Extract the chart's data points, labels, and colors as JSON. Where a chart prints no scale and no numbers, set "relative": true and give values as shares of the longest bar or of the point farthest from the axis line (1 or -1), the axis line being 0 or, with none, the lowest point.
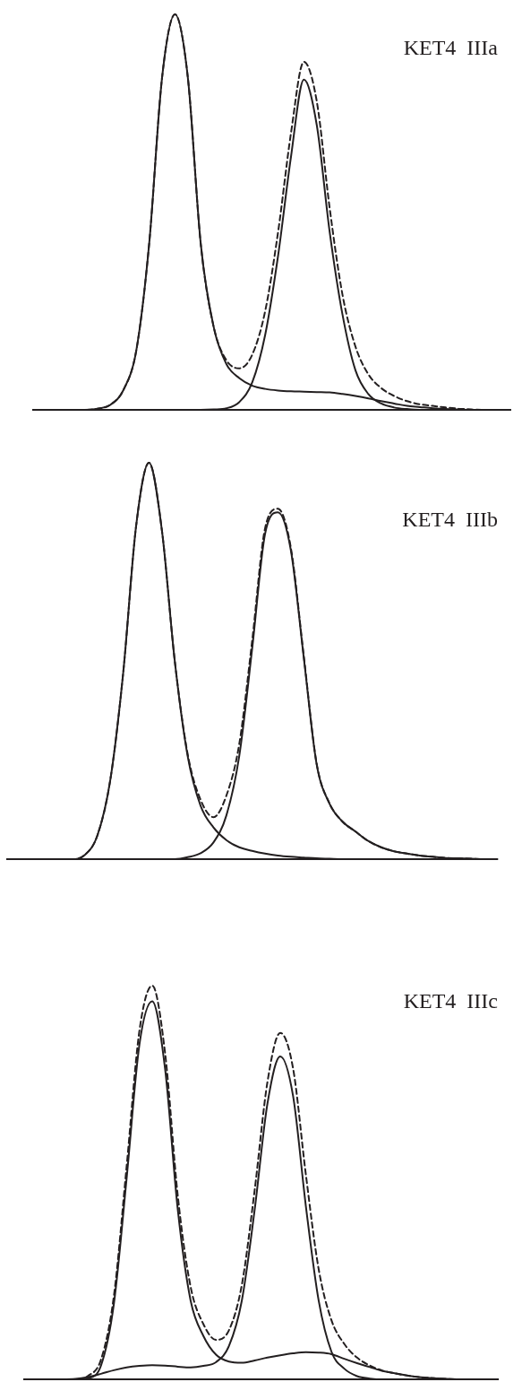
{
  "chart_data": [
    {
      "type": "line",
      "title": "KET4  IIIa",
      "relative": true,
      "marker": "none",
      "categories": [
        null,
        null,
        null,
        null,
        null,
        null,
        null,
        null,
        null,
        null,
        null,
        null,
        null,
        null,
        null,
        null,
        null,
        null,
        null,
        null,
        null,
        null,
        null,
        null,
        null,
        null,
        null,
        null,
        null,
        null,
        null,
        null,
        null,
        null,
        null,
        null,
        null,
        null
      ],
      "series": [
        {
          "color": "#231f20",
          "line_style": "solid",
          "values": [
            0,
            0,
            0,
            0,
            0,
            0.003,
            0.013,
            0.05,
            0.15,
            0.42,
            0.84,
            1,
            0.84,
            0.42,
            0.21,
            0.115,
            0.08,
            0.061,
            0.053,
            0.049,
            0.047,
            0.046,
            0.045,
            0.044,
            0.04,
            0.035,
            0.029,
            0.022,
            0.016,
            0.01,
            0.007,
            0.004,
            0.002,
            0.001,
            0,
            0,
            0,
            0
          ]
        },
        {
          "color": "#231f20",
          "line_style": "solid",
          "values": [
            0,
            0,
            0,
            0,
            0,
            0,
            0,
            0,
            0,
            0,
            0,
            0,
            0,
            0,
            0.001,
            0.004,
            0.02,
            0.07,
            0.19,
            0.39,
            0.64,
            0.835,
            0.72,
            0.45,
            0.24,
            0.1,
            0.04,
            0.016,
            0.006,
            0.002,
            0,
            0,
            0,
            0,
            0,
            0,
            0,
            0
          ]
        },
        {
          "color": "#231f20",
          "line_style": "dashed",
          "values": [
            0,
            0,
            0,
            0,
            0,
            0.003,
            0.013,
            0.05,
            0.15,
            0.42,
            0.84,
            1,
            0.84,
            0.42,
            0.21,
            0.125,
            0.105,
            0.14,
            0.25,
            0.45,
            0.7,
            0.88,
            0.78,
            0.51,
            0.29,
            0.16,
            0.09,
            0.055,
            0.035,
            0.022,
            0.014,
            0.01,
            0.006,
            0.003,
            0.001,
            0,
            0,
            0
          ]
        }
      ]
    },
    {
      "type": "line",
      "title": "KET4  IIIb",
      "relative": true,
      "marker": "none",
      "categories": [
        null,
        null,
        null,
        null,
        null,
        null,
        null,
        null,
        null,
        null,
        null,
        null,
        null,
        null,
        null,
        null,
        null,
        null,
        null,
        null,
        null,
        null,
        null,
        null,
        null,
        null,
        null,
        null,
        null,
        null,
        null,
        null,
        null,
        null,
        null,
        null,
        null,
        null,
        null
      ],
      "series": [
        {
          "color": "#231f20",
          "line_style": "solid",
          "values": [
            0,
            0,
            0,
            0,
            0,
            0,
            0.01,
            0.06,
            0.2,
            0.47,
            0.84,
            1,
            0.83,
            0.5,
            0.26,
            0.135,
            0.08,
            0.048,
            0.03,
            0.021,
            0.014,
            0.009,
            0.006,
            0.004,
            0.002,
            0.001,
            0,
            0,
            0,
            0,
            0,
            0,
            0,
            0,
            0,
            0,
            0,
            0,
            0
          ]
        },
        {
          "color": "#231f20",
          "line_style": "solid",
          "values": [
            0,
            0,
            0,
            0,
            0,
            0,
            0,
            0,
            0,
            0,
            0,
            0,
            0,
            0,
            0.005,
            0.015,
            0.042,
            0.11,
            0.26,
            0.53,
            0.82,
            0.875,
            0.78,
            0.51,
            0.24,
            0.14,
            0.095,
            0.07,
            0.046,
            0.03,
            0.02,
            0.014,
            0.009,
            0.006,
            0.003,
            0.002,
            0.001,
            0,
            0
          ]
        },
        {
          "color": "#231f20",
          "line_style": "dashed",
          "values": [
            0,
            0,
            0,
            0,
            0,
            0,
            0.01,
            0.06,
            0.2,
            0.47,
            0.84,
            1,
            0.83,
            0.5,
            0.265,
            0.15,
            0.106,
            0.16,
            0.29,
            0.55,
            0.834,
            0.884,
            0.786,
            0.514,
            0.242,
            0.141,
            0.095,
            0.07,
            0.046,
            0.03,
            0.02,
            0.014,
            0.009,
            0.006,
            0.003,
            0.002,
            0.001,
            0,
            0
          ]
        }
      ]
    },
    {
      "type": "line",
      "title": "KET4  IIIc",
      "relative": true,
      "marker": "none",
      "categories": [
        null,
        null,
        null,
        null,
        null,
        null,
        null,
        null,
        null,
        null,
        null,
        null,
        null,
        null,
        null,
        null,
        null,
        null,
        null,
        null,
        null,
        null,
        null,
        null,
        null,
        null,
        null,
        null,
        null,
        null,
        null,
        null,
        null,
        null,
        null,
        null,
        null,
        null
      ],
      "series": [
        {
          "color": "#231f20",
          "line_style": "solid",
          "values": [
            0,
            0,
            0,
            0,
            0,
            0.003,
            0.035,
            0.19,
            0.51,
            0.85,
            0.96,
            0.79,
            0.43,
            0.2,
            0.11,
            0.062,
            0.045,
            0.042,
            0.048,
            0.055,
            0.061,
            0.066,
            0.069,
            0.068,
            0.064,
            0.052,
            0.041,
            0.031,
            0.021,
            0.015,
            0.009,
            0.005,
            0.003,
            0.001,
            0,
            0,
            0,
            0
          ]
        },
        {
          "color": "#231f20",
          "line_style": "solid",
          "values": [
            0,
            0,
            0,
            0,
            0.001,
            0.006,
            0.014,
            0.023,
            0.03,
            0.034,
            0.036,
            0.035,
            0.032,
            0.03,
            0.034,
            0.044,
            0.085,
            0.2,
            0.43,
            0.7,
            0.82,
            0.72,
            0.44,
            0.2,
            0.07,
            0.027,
            0.008,
            0.002,
            0,
            0,
            0,
            0,
            0,
            0,
            0,
            0,
            0,
            0
          ]
        },
        {
          "color": "#231f20",
          "line_style": "dashed",
          "values": [
            0,
            0,
            0,
            0,
            0,
            0.009,
            0.05,
            0.21,
            0.54,
            0.885,
            1,
            0.83,
            0.465,
            0.235,
            0.14,
            0.1,
            0.125,
            0.24,
            0.48,
            0.755,
            0.88,
            0.79,
            0.52,
            0.28,
            0.15,
            0.09,
            0.055,
            0.035,
            0.022,
            0.015,
            0.009,
            0.005,
            0.003,
            0.001,
            0,
            0,
            0,
            0
          ]
        }
      ]
    }
  ]
}
